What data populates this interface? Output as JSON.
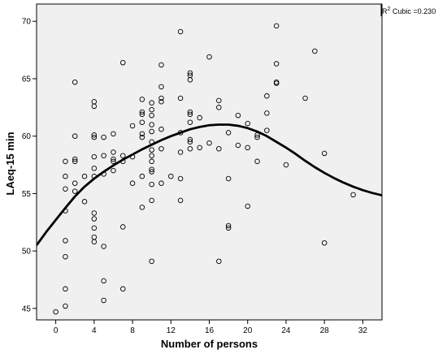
{
  "chart_data": {
    "type": "scatter",
    "xlabel": "Number of persons",
    "ylabel": "LAeq-15 min",
    "xlim": [
      -2,
      34
    ],
    "ylim": [
      44,
      71.5
    ],
    "xticks": [
      0,
      4,
      8,
      12,
      16,
      20,
      24,
      28,
      32
    ],
    "yticks": [
      45,
      50,
      55,
      60,
      65,
      70
    ],
    "grid": false,
    "background": "#f0f0f0",
    "annotation": {
      "r2_label": "R",
      "r2_exponent": "2",
      "r2_text": " Cubic =0.230"
    },
    "fit": {
      "type": "cubic",
      "color": "#000000",
      "points": [
        [
          -2.0,
          50.5
        ],
        [
          -1.0,
          51.65
        ],
        [
          0.0,
          52.7
        ],
        [
          1.0,
          53.75
        ],
        [
          2.0,
          54.75
        ],
        [
          3.0,
          55.6
        ],
        [
          4.0,
          56.3
        ],
        [
          5.0,
          56.9
        ],
        [
          6.0,
          57.45
        ],
        [
          7.0,
          57.95
        ],
        [
          8.0,
          58.4
        ],
        [
          9.0,
          58.85
        ],
        [
          10.0,
          59.25
        ],
        [
          11.0,
          59.65
        ],
        [
          12.0,
          60.0
        ],
        [
          13.0,
          60.3
        ],
        [
          14.0,
          60.6
        ],
        [
          15.0,
          60.8
        ],
        [
          16.0,
          60.95
        ],
        [
          17.0,
          61.0
        ],
        [
          18.0,
          61.0
        ],
        [
          19.0,
          60.9
        ],
        [
          20.0,
          60.7
        ],
        [
          21.0,
          60.4
        ],
        [
          22.0,
          60.0
        ],
        [
          23.0,
          59.5
        ],
        [
          24.0,
          59.0
        ],
        [
          25.0,
          58.45
        ],
        [
          26.0,
          57.85
        ],
        [
          27.0,
          57.3
        ],
        [
          28.0,
          56.8
        ],
        [
          29.0,
          56.35
        ],
        [
          30.0,
          55.95
        ],
        [
          31.0,
          55.6
        ],
        [
          32.0,
          55.3
        ],
        [
          33.0,
          55.05
        ],
        [
          34.0,
          54.85
        ]
      ]
    },
    "series": [
      {
        "marker": "circle",
        "points": [
          [
            0,
            44.7
          ],
          [
            1,
            45.2
          ],
          [
            1,
            46.7
          ],
          [
            1,
            49.5
          ],
          [
            1,
            50.9
          ],
          [
            1,
            53.5
          ],
          [
            1,
            55.4
          ],
          [
            1,
            56.5
          ],
          [
            1,
            57.8
          ],
          [
            2,
            55.2
          ],
          [
            2,
            55.9
          ],
          [
            2,
            57.8
          ],
          [
            2,
            58.0
          ],
          [
            2,
            60.0
          ],
          [
            2,
            64.7
          ],
          [
            3,
            54.3
          ],
          [
            3,
            56.5
          ],
          [
            4,
            50.8
          ],
          [
            4,
            51.2
          ],
          [
            4,
            52.0
          ],
          [
            4,
            52.8
          ],
          [
            4,
            53.3
          ],
          [
            4,
            56.5
          ],
          [
            4,
            57.2
          ],
          [
            4,
            58.2
          ],
          [
            4,
            59.9
          ],
          [
            4,
            60.1
          ],
          [
            4,
            62.6
          ],
          [
            4,
            63.0
          ],
          [
            5,
            45.7
          ],
          [
            5,
            47.4
          ],
          [
            5,
            50.4
          ],
          [
            5,
            56.7
          ],
          [
            5,
            58.3
          ],
          [
            5,
            59.9
          ],
          [
            6,
            57.0
          ],
          [
            6,
            57.8
          ],
          [
            6,
            58.0
          ],
          [
            6,
            58.6
          ],
          [
            6,
            60.2
          ],
          [
            7,
            46.7
          ],
          [
            7,
            52.1
          ],
          [
            7,
            57.8
          ],
          [
            7,
            58.3
          ],
          [
            7,
            66.4
          ],
          [
            8,
            55.9
          ],
          [
            8,
            58.2
          ],
          [
            8,
            60.9
          ],
          [
            9,
            53.8
          ],
          [
            9,
            56.5
          ],
          [
            9,
            59.9
          ],
          [
            9,
            60.2
          ],
          [
            9,
            61.2
          ],
          [
            9,
            61.9
          ],
          [
            9,
            62.1
          ],
          [
            9,
            63.2
          ],
          [
            10,
            49.1
          ],
          [
            10,
            54.4
          ],
          [
            10,
            55.8
          ],
          [
            10,
            56.9
          ],
          [
            10,
            57.1
          ],
          [
            10,
            57.8
          ],
          [
            10,
            58.3
          ],
          [
            10,
            58.8
          ],
          [
            10,
            59.5
          ],
          [
            10,
            60.4
          ],
          [
            10,
            61.0
          ],
          [
            10,
            61.8
          ],
          [
            10,
            62.3
          ],
          [
            10,
            62.9
          ],
          [
            11,
            55.9
          ],
          [
            11,
            58.9
          ],
          [
            11,
            60.6
          ],
          [
            11,
            63.0
          ],
          [
            11,
            63.3
          ],
          [
            11,
            64.3
          ],
          [
            11,
            66.2
          ],
          [
            12,
            56.5
          ],
          [
            13,
            54.4
          ],
          [
            13,
            56.3
          ],
          [
            13,
            58.6
          ],
          [
            13,
            60.3
          ],
          [
            13,
            63.3
          ],
          [
            13,
            69.1
          ],
          [
            14,
            58.9
          ],
          [
            14,
            59.5
          ],
          [
            14,
            59.7
          ],
          [
            14,
            61.2
          ],
          [
            14,
            61.9
          ],
          [
            14,
            62.1
          ],
          [
            14,
            64.9
          ],
          [
            14,
            65.3
          ],
          [
            14,
            65.5
          ],
          [
            15,
            59.0
          ],
          [
            15,
            61.6
          ],
          [
            16,
            59.4
          ],
          [
            16,
            66.9
          ],
          [
            17,
            49.1
          ],
          [
            17,
            58.9
          ],
          [
            17,
            62.5
          ],
          [
            17,
            63.1
          ],
          [
            18,
            52.0
          ],
          [
            18,
            52.2
          ],
          [
            18,
            56.3
          ],
          [
            18,
            60.3
          ],
          [
            19,
            59.2
          ],
          [
            19,
            61.8
          ],
          [
            20,
            53.9
          ],
          [
            20,
            59.0
          ],
          [
            20,
            61.1
          ],
          [
            21,
            57.8
          ],
          [
            21,
            59.9
          ],
          [
            21,
            60.1
          ],
          [
            22,
            60.5
          ],
          [
            22,
            62.0
          ],
          [
            22,
            63.5
          ],
          [
            23,
            64.6
          ],
          [
            23,
            64.7
          ],
          [
            23,
            66.3
          ],
          [
            23,
            69.6
          ],
          [
            24,
            57.5
          ],
          [
            26,
            63.3
          ],
          [
            27,
            67.4
          ],
          [
            28,
            50.7
          ],
          [
            28,
            58.5
          ],
          [
            31,
            54.9
          ]
        ]
      }
    ]
  }
}
